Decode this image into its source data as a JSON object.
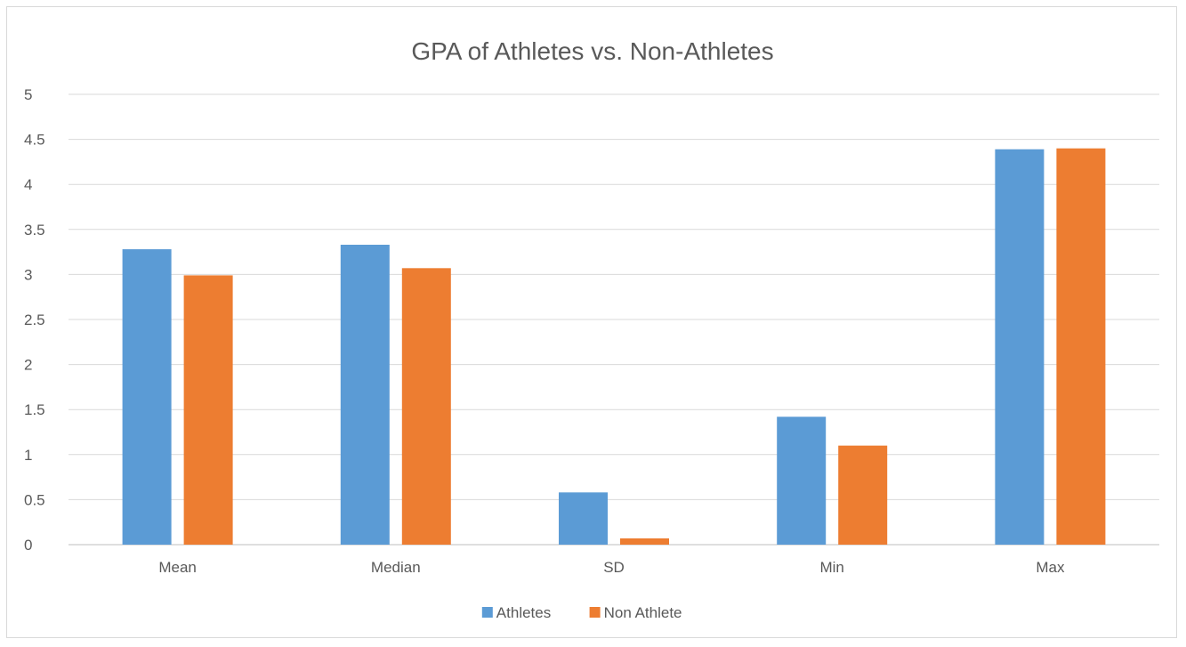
{
  "chart_data": {
    "type": "bar",
    "title": "GPA of Athletes vs. Non-Athletes",
    "xlabel": "",
    "ylabel": "",
    "categories": [
      "Mean",
      "Median",
      "SD",
      "Min",
      "Max"
    ],
    "series": [
      {
        "name": "Athletes",
        "values": [
          3.28,
          3.33,
          0.58,
          1.42,
          4.39
        ],
        "color": "#5b9bd5"
      },
      {
        "name": "Non Athlete",
        "values": [
          2.99,
          3.07,
          0.07,
          1.1,
          4.4
        ],
        "color": "#ed7d31"
      }
    ],
    "ylim": [
      0,
      5
    ],
    "yticks": [
      "0",
      "0.5",
      "1",
      "1.5",
      "2",
      "2.5",
      "3",
      "3.5",
      "4",
      "4.5",
      "5"
    ],
    "grid": true,
    "legend_position": "bottom"
  }
}
